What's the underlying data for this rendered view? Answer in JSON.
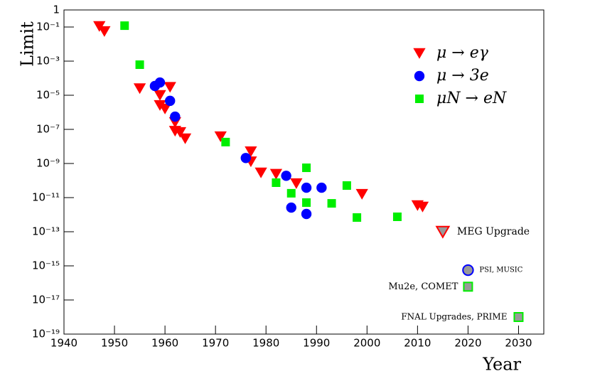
{
  "chart_data": {
    "type": "scatter",
    "x_label": "Year",
    "y_label": "Limit",
    "xlim": [
      1940,
      2035
    ],
    "xticks": [
      1940,
      1950,
      1960,
      1970,
      1980,
      1990,
      2000,
      2010,
      2020,
      2030
    ],
    "ylim": [
      1e-19,
      1
    ],
    "log_y": true,
    "yticks": [
      1,
      {
        "value": 0.1,
        "label": "10⁻¹"
      },
      {
        "value": 0.001,
        "label": "10⁻³"
      },
      {
        "value": 1e-05,
        "label": "10⁻⁵"
      },
      {
        "value": 1e-07,
        "label": "10⁻⁷"
      },
      {
        "value": 1e-09,
        "label": "10⁻⁹"
      },
      {
        "value": 1e-11,
        "label": "10⁻¹¹"
      },
      {
        "value": 1e-13,
        "label": "10⁻¹³"
      },
      {
        "value": 1e-15,
        "label": "10⁻¹⁵"
      },
      {
        "value": 1e-17,
        "label": "10⁻¹⁷"
      },
      {
        "value": 1e-19,
        "label": "10⁻¹⁹"
      }
    ],
    "legend_position": "upper right",
    "series": [
      {
        "name": "μ → eγ",
        "color": "#ff0000",
        "marker": "triangle-down",
        "x": [
          1947,
          1948,
          1955,
          1959,
          1959,
          1960,
          1961,
          1962,
          1962,
          1963,
          1964,
          1971,
          1977,
          1977,
          1979,
          1982,
          1986,
          1999,
          2010,
          2011
        ],
        "values": [
          0.11,
          0.056,
          2.5e-05,
          1e-05,
          2.6e-06,
          1.6e-06,
          3e-05,
          2.6e-07,
          8e-08,
          6.8e-08,
          2.9e-08,
          3.8e-08,
          5e-09,
          1.3e-09,
          2.9e-10,
          2.4e-10,
          6.8e-11,
          1.6e-11,
          3.5e-12,
          2.9e-12
        ]
      },
      {
        "name": "μ → 3e",
        "color": "#0000ff",
        "marker": "circle",
        "x": [
          1958,
          1959,
          1961,
          1962,
          1976,
          1984,
          1985,
          1988,
          1988,
          1991
        ],
        "values": [
          3.5e-05,
          5.6e-05,
          4.7e-06,
          5.6e-07,
          2.1e-09,
          1.9e-10,
          2.6e-12,
          3.8e-11,
          1.1e-12,
          3.8e-11
        ]
      },
      {
        "name": "μN → eN",
        "color": "#00ee00",
        "marker": "square",
        "x": [
          1952,
          1955,
          1972,
          1982,
          1985,
          1988,
          1988,
          1993,
          1996,
          1998,
          2006
        ],
        "values": [
          0.12,
          0.00062,
          1.8e-08,
          7.5e-11,
          1.8e-11,
          5.6e-10,
          5.1e-12,
          4.6e-12,
          5.1e-11,
          6.8e-13,
          7.5e-13
        ]
      }
    ],
    "annotations": [
      {
        "text": "MEG Upgrade",
        "x": 2015,
        "y": 1e-13,
        "marker": "triangle-down",
        "color": "#999999",
        "edge": "#ff0000"
      },
      {
        "text": "PSI,  MUSIC",
        "x": 2020,
        "y": 5.6e-16,
        "marker": "circle",
        "color": "#999999",
        "edge": "#0000ff"
      },
      {
        "text": "Mu2e,  COMET",
        "x": 2020,
        "y": 6e-17,
        "marker": "square",
        "color": "#999999",
        "edge": "#00ee00"
      },
      {
        "text": "FNAL Upgrades, PRIME",
        "x": 2030,
        "y": 1e-18,
        "marker": "square",
        "color": "#999999",
        "edge": "#00ee00"
      }
    ]
  }
}
